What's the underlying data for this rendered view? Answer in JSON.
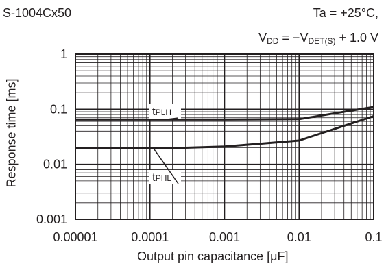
{
  "header": {
    "part_number": "S-1004Cx50",
    "condition_ta": "Ta = +25°C,",
    "condition_vdd_prefix": "V",
    "condition_vdd_sub1": "DD",
    "condition_vdd_mid": " = −V",
    "condition_vdd_sub2": "DET(S)",
    "condition_vdd_suffix": " + 1.0 V"
  },
  "chart_data": {
    "type": "line",
    "xlabel": "Output pin capacitance [μF]",
    "ylabel": "Response time [ms]",
    "xscale": "log",
    "yscale": "log",
    "xlim": [
      1e-05,
      0.1
    ],
    "ylim": [
      0.001,
      1
    ],
    "x_ticks": [
      "0.00001",
      "0.0001",
      "0.001",
      "0.01",
      "0.1"
    ],
    "y_ticks": [
      "0.001",
      "0.01",
      "0.1",
      "1"
    ],
    "grid": true,
    "series": [
      {
        "name": "tPLH",
        "label_main": "t",
        "label_sub": "PLH",
        "x": [
          1e-05,
          0.0001,
          0.001,
          0.01,
          0.1
        ],
        "y": [
          0.065,
          0.065,
          0.065,
          0.066,
          0.11
        ]
      },
      {
        "name": "tPHL",
        "label_main": "t",
        "label_sub": "PHL",
        "x": [
          1e-05,
          0.0001,
          0.0003,
          0.001,
          0.01,
          0.1
        ],
        "y": [
          0.02,
          0.02,
          0.02,
          0.021,
          0.027,
          0.075
        ]
      }
    ]
  }
}
